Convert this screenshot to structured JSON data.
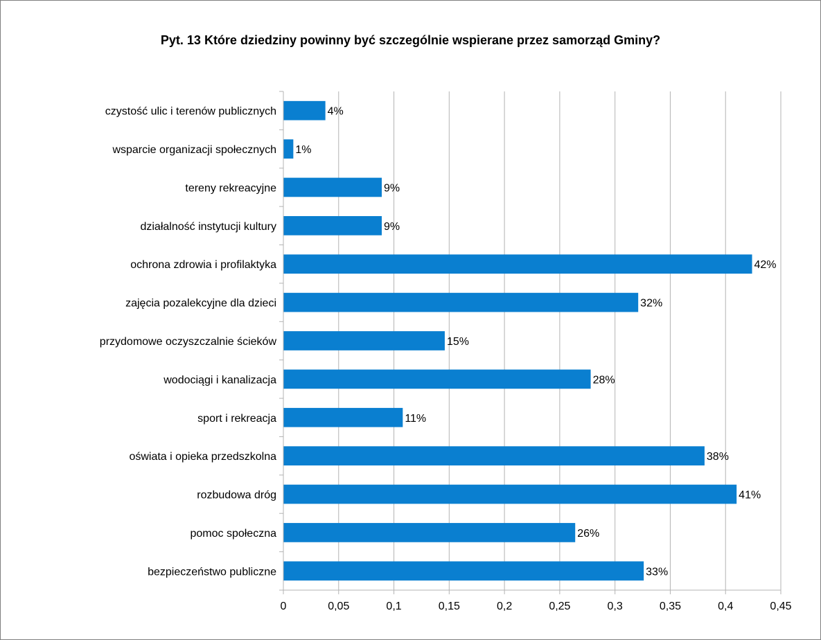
{
  "chart_data": {
    "type": "bar",
    "orientation": "horizontal",
    "title": "Pyt. 13 Które dziedziny powinny być szczególnie wspierane przez samorząd Gminy?",
    "xlabel": "",
    "ylabel": "",
    "xlim": [
      0,
      0.45
    ],
    "x_ticks": [
      "0",
      "0,05",
      "0,1",
      "0,15",
      "0,2",
      "0,25",
      "0,3",
      "0,35",
      "0,4",
      "0,45"
    ],
    "x_tick_values": [
      0,
      0.05,
      0.1,
      0.15,
      0.2,
      0.25,
      0.3,
      0.35,
      0.4,
      0.45
    ],
    "grid": true,
    "bar_color": "#0a7fd0",
    "categories": [
      "czystość ulic i terenów publicznych",
      "wsparcie organizacji społecznych",
      "tereny rekreacyjne",
      "działalność instytucji kultury",
      "ochrona zdrowia i  profilaktyka",
      "zajęcia pozalekcyjne dla dzieci",
      "przydomowe oczyszczalnie ścieków",
      "wodociągi i kanalizacja",
      "sport i rekreacja",
      "oświata i opieka przedszkolna",
      "rozbudowa dróg",
      "pomoc społeczna",
      "bezpieczeństwo publiczne"
    ],
    "values": [
      0.038,
      0.009,
      0.089,
      0.089,
      0.424,
      0.321,
      0.146,
      0.278,
      0.108,
      0.381,
      0.41,
      0.264,
      0.326
    ],
    "data_labels": [
      "4%",
      "1%",
      "9%",
      "9%",
      "42%",
      "32%",
      "15%",
      "28%",
      "11%",
      "38%",
      "41%",
      "26%",
      "33%"
    ]
  }
}
